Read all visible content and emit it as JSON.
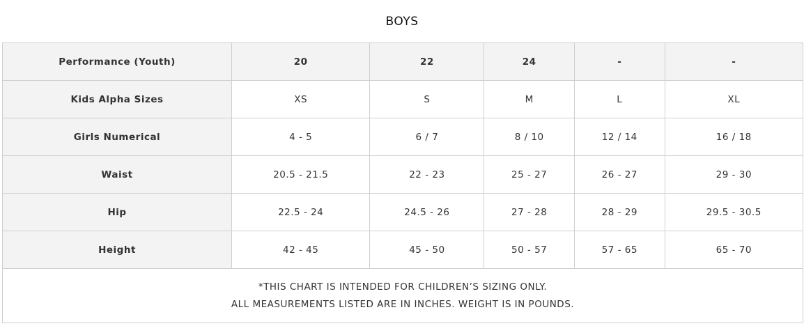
{
  "title": "BOYS",
  "table": {
    "header": [
      "Performance (Youth)",
      "20",
      "22",
      "24",
      "-",
      "-"
    ],
    "rows": [
      [
        "Kids Alpha Sizes",
        "XS",
        "S",
        "M",
        "L",
        "XL"
      ],
      [
        "Girls Numerical",
        "4 - 5",
        "6 / 7",
        "8 / 10",
        "12 / 14",
        "16 / 18"
      ],
      [
        "Waist",
        "20.5 - 21.5",
        "22 - 23",
        "25 - 27",
        "26 - 27",
        "29 - 30"
      ],
      [
        "Hip",
        "22.5 - 24",
        "24.5 - 26",
        "27 - 28",
        "28 - 29",
        "29.5 - 30.5"
      ],
      [
        "Height",
        "42 - 45",
        "45 - 50",
        "50 - 57",
        "57 - 65",
        "65 - 70"
      ]
    ],
    "notes": [
      "*THIS CHART IS INTENDED FOR CHILDREN’S SIZING ONLY.",
      "ALL MEASUREMENTS LISTED ARE IN INCHES. WEIGHT IS IN POUNDS."
    ]
  }
}
